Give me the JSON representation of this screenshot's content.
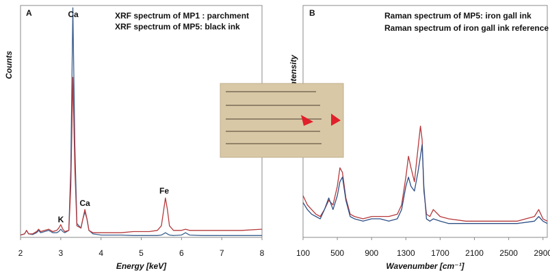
{
  "chart_data": [
    {
      "type": "line",
      "panel_label": "A",
      "x_label": "Energy [keV]",
      "y_label": "Counts",
      "xlim": [
        2,
        8
      ],
      "ylim": [
        0,
        100
      ],
      "xticks": [
        2,
        3,
        4,
        5,
        6,
        7,
        8
      ],
      "grid": false,
      "legend": "upper right",
      "annotations": [
        "Ca",
        "Ca",
        "K",
        "Fe"
      ],
      "x": [
        2.0,
        2.1,
        2.15,
        2.2,
        2.3,
        2.4,
        2.45,
        2.5,
        2.6,
        2.7,
        2.75,
        2.8,
        2.9,
        2.95,
        3.0,
        3.05,
        3.1,
        3.2,
        3.25,
        3.3,
        3.35,
        3.4,
        3.5,
        3.55,
        3.6,
        3.65,
        3.7,
        3.8,
        4.0,
        4.2,
        4.5,
        4.8,
        5.0,
        5.2,
        5.4,
        5.5,
        5.55,
        5.6,
        5.65,
        5.7,
        5.8,
        6.0,
        6.1,
        6.2,
        6.5,
        7.0,
        7.5,
        8.0
      ],
      "series": [
        {
          "name": "XRF spectrum of MP1 : parchment",
          "color": "#3b5e8c",
          "values": [
            1,
            1.5,
            3,
            1.5,
            1.2,
            2,
            3,
            2,
            2.5,
            3,
            2.5,
            2,
            2,
            2.5,
            3.5,
            2.5,
            2,
            3,
            30,
            99,
            40,
            6,
            4,
            8,
            11,
            8,
            3,
            1.5,
            1,
            1,
            1,
            0.8,
            0.8,
            0.8,
            0.8,
            1,
            1.5,
            2,
            1.5,
            1,
            0.8,
            1,
            2,
            1,
            0.8,
            0.8,
            0.8,
            0.8
          ]
        },
        {
          "name": "XRF spectrum of MP5: black ink",
          "color": "#b5373a",
          "values": [
            1,
            1.5,
            3,
            1.5,
            1.5,
            2.5,
            3.5,
            2.5,
            3,
            3.5,
            3,
            2.5,
            3,
            4,
            5.5,
            3.5,
            2.5,
            3,
            22,
            69,
            30,
            5,
            4,
            8,
            12,
            8,
            3,
            2,
            2,
            2,
            2,
            2.5,
            2.5,
            2.5,
            3,
            5,
            11,
            17,
            12,
            5,
            3,
            3,
            3.5,
            3,
            3,
            3,
            3,
            3.5
          ]
        }
      ]
    },
    {
      "type": "line",
      "panel_label": "B",
      "x_label": "Wavenumber [cm⁻¹]",
      "y_label": "Intensity",
      "xlim": [
        100,
        2950
      ],
      "ylim": [
        0,
        100
      ],
      "xticks": [
        100,
        500,
        900,
        1300,
        1700,
        2100,
        2500,
        2900
      ],
      "grid": false,
      "legend": "upper right",
      "x": [
        100,
        150,
        200,
        250,
        300,
        350,
        400,
        450,
        500,
        530,
        560,
        600,
        650,
        700,
        800,
        900,
        1000,
        1100,
        1200,
        1250,
        1300,
        1330,
        1360,
        1400,
        1440,
        1470,
        1490,
        1510,
        1540,
        1580,
        1620,
        1700,
        1800,
        2000,
        2200,
        2400,
        2600,
        2800,
        2850,
        2900,
        2950
      ],
      "series": [
        {
          "name": "Raman spectrum of MP5: iron gall ink",
          "color": "#b5373a",
          "values": [
            18,
            14,
            12,
            10,
            9,
            12,
            16,
            14,
            22,
            30,
            28,
            17,
            10,
            9,
            8,
            9,
            9,
            9,
            10,
            14,
            26,
            35,
            30,
            24,
            38,
            48,
            42,
            20,
            10,
            9,
            12,
            9,
            8,
            7,
            7,
            7,
            7,
            9,
            12,
            8,
            7
          ]
        },
        {
          "name": "Raman spectrum of iron gall ink reference",
          "color": "#2d4f86",
          "values": [
            15,
            12,
            10,
            9,
            8,
            12,
            17,
            12,
            18,
            24,
            26,
            16,
            9,
            8,
            7,
            8,
            8,
            7,
            8,
            12,
            22,
            26,
            22,
            20,
            28,
            35,
            40,
            22,
            8,
            7,
            8,
            7,
            6,
            6,
            6,
            6,
            6,
            7,
            9,
            7,
            6
          ]
        }
      ]
    }
  ]
}
